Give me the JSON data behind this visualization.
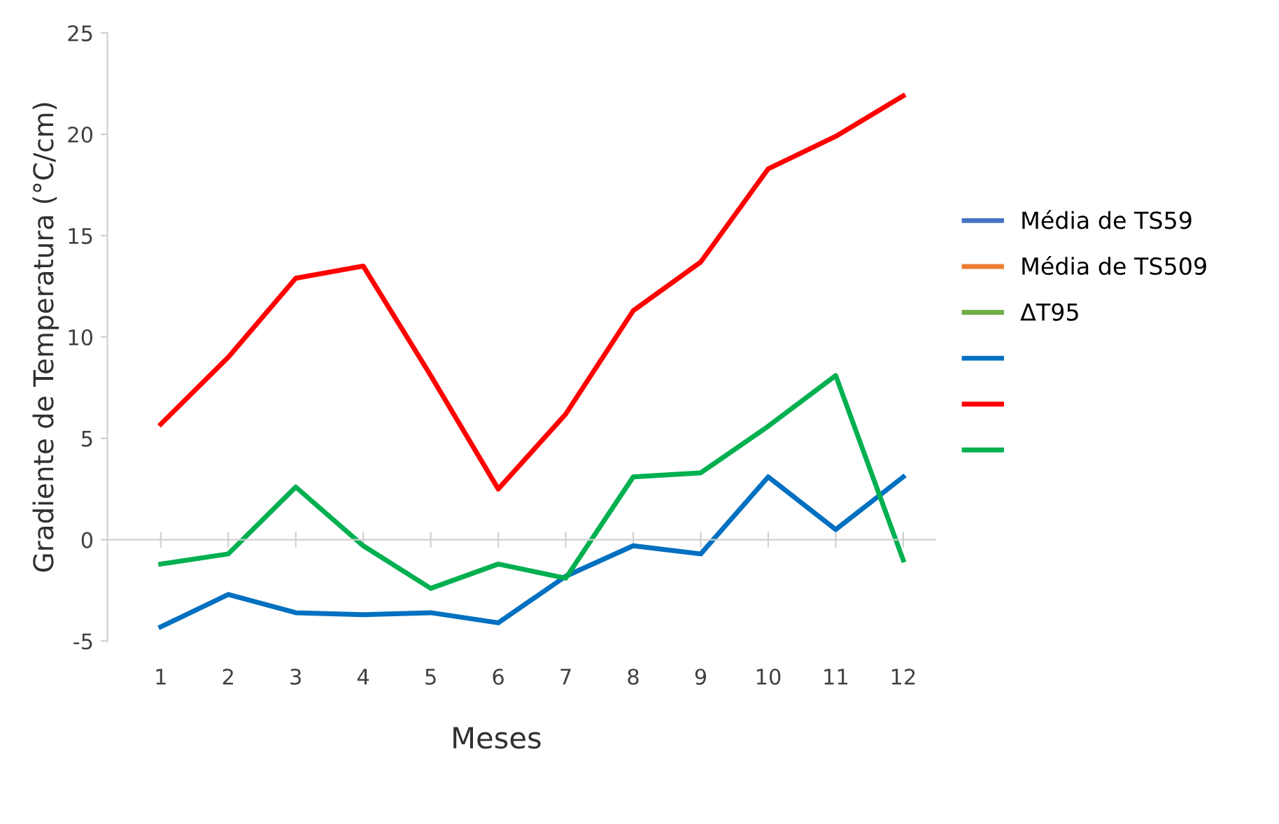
{
  "chart_data": {
    "type": "line",
    "xlabel": "Meses",
    "ylabel": "Gradiente de Temperatura (°C/cm)",
    "categories": [
      "1",
      "2",
      "3",
      "4",
      "5",
      "6",
      "7",
      "8",
      "9",
      "10",
      "11",
      "12"
    ],
    "series": [
      {
        "name": "Média de TS59",
        "color": "#4472c4",
        "values": [
          null,
          null,
          null,
          null,
          null,
          null,
          null,
          null,
          null,
          null,
          null,
          null
        ]
      },
      {
        "name": "Média de TS509",
        "color": "#ed7d31",
        "values": [
          null,
          null,
          null,
          null,
          null,
          null,
          null,
          null,
          null,
          null,
          null,
          null
        ]
      },
      {
        "name": "ΔT95",
        "color": "#70ad47",
        "values": [
          null,
          null,
          null,
          null,
          null,
          null,
          null,
          null,
          null,
          null,
          null,
          null
        ]
      },
      {
        "color": "#0070c0",
        "values": [
          -4.3,
          -2.7,
          -3.6,
          -3.7,
          -3.6,
          -4.1,
          -1.8,
          -0.3,
          -0.7,
          3.1,
          0.5,
          3.1
        ]
      },
      {
        "color": "#ff0000",
        "values": [
          5.7,
          9.0,
          12.9,
          13.5,
          8.1,
          2.5,
          6.2,
          11.3,
          13.7,
          18.3,
          19.9,
          21.9
        ]
      },
      {
        "color": "#00b050",
        "values": [
          -1.2,
          -0.7,
          2.6,
          -0.3,
          -2.4,
          -1.2,
          -1.9,
          3.1,
          3.3,
          5.6,
          8.1,
          -1.0
        ]
      }
    ],
    "ylim": [
      -5,
      25
    ],
    "yticks": [
      -5,
      0,
      5,
      10,
      15,
      20,
      25
    ],
    "legend": "right",
    "marker": "none",
    "line_style": "solid"
  }
}
